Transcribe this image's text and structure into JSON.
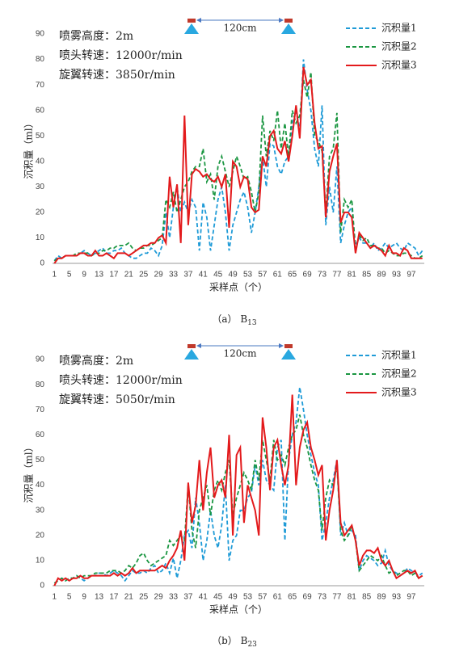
{
  "chart_data": [
    {
      "type": "line",
      "caption": "（a） B",
      "caption_sub": "13",
      "xlabel": "采样点（个）",
      "ylabel": "沉积量（ml）",
      "annotations": [
        "喷雾高度：2m",
        "喷头转速：12000r/min",
        "旋翼转速：3850r/min"
      ],
      "spacing_label": "120cm",
      "ylim": [
        0,
        90
      ],
      "yticks": [
        0,
        10,
        20,
        30,
        40,
        50,
        60,
        70,
        80,
        90
      ],
      "categories": [
        1,
        null,
        null,
        null,
        5,
        null,
        null,
        null,
        9,
        null,
        null,
        null,
        13,
        null,
        null,
        null,
        17,
        null,
        null,
        null,
        21,
        null,
        null,
        null,
        25,
        null,
        null,
        null,
        29,
        null,
        null,
        null,
        33,
        null,
        null,
        null,
        37,
        null,
        null,
        null,
        41,
        null,
        null,
        null,
        45,
        null,
        null,
        null,
        49,
        null,
        null,
        null,
        53,
        null,
        null,
        null,
        57,
        null,
        null,
        null,
        61,
        null,
        null,
        null,
        65,
        null,
        null,
        null,
        69,
        null,
        null,
        null,
        73,
        null,
        null,
        null,
        77,
        null,
        null,
        null,
        81,
        null,
        null,
        null,
        85,
        null,
        null,
        null,
        89,
        null,
        null,
        null,
        93,
        null,
        null,
        null,
        97,
        null,
        null,
        null
      ],
      "series": [
        {
          "name": "沉积量1",
          "color": "#1f9bd7",
          "linestyle": "dashed",
          "values": [
            1,
            3,
            2,
            3,
            3,
            3,
            3,
            4,
            5,
            4,
            3,
            4,
            5,
            6,
            4,
            4,
            5,
            5,
            6,
            4,
            3,
            2,
            2,
            3,
            4,
            4,
            6,
            5,
            3,
            7,
            20,
            10,
            22,
            30,
            20,
            24,
            20,
            25,
            22,
            5,
            24,
            18,
            5,
            15,
            25,
            30,
            20,
            5,
            15,
            20,
            25,
            28,
            22,
            12,
            20,
            30,
            42,
            30,
            47,
            46,
            38,
            35,
            40,
            42,
            55,
            60,
            52,
            80,
            68,
            60,
            45,
            38,
            62,
            15,
            30,
            20,
            38,
            8,
            15,
            20,
            22,
            7,
            10,
            8,
            8,
            6,
            8,
            5,
            6,
            8,
            6,
            7,
            8,
            6,
            5,
            8,
            7,
            6,
            3,
            5
          ]
        },
        {
          "name": "沉积量2",
          "color": "#1a9641",
          "linestyle": "dashed",
          "values": [
            1,
            2,
            2,
            3,
            3,
            3,
            4,
            4,
            4,
            4,
            3,
            4,
            4,
            5,
            5,
            6,
            6,
            7,
            7,
            7,
            8,
            6,
            5,
            6,
            6,
            7,
            7,
            8,
            9,
            10,
            25,
            22,
            28,
            20,
            25,
            30,
            32,
            36,
            38,
            38,
            45,
            32,
            35,
            25,
            38,
            42,
            36,
            30,
            36,
            42,
            38,
            33,
            34,
            28,
            20,
            28,
            58,
            42,
            52,
            48,
            60,
            45,
            55,
            42,
            60,
            55,
            58,
            72,
            65,
            75,
            50,
            48,
            44,
            20,
            42,
            45,
            59,
            12,
            25,
            22,
            25,
            5,
            11,
            9,
            10,
            7,
            7,
            6,
            6,
            4,
            5,
            4,
            3,
            3,
            4,
            4,
            3,
            2,
            2,
            3
          ]
        },
        {
          "name": "沉积量3",
          "color": "#e31a1c",
          "linestyle": "solid",
          "values": [
            0,
            2,
            2,
            3,
            3,
            3,
            3,
            4,
            4,
            3,
            3,
            5,
            3,
            3,
            4,
            3,
            2,
            4,
            4,
            4,
            3,
            4,
            5,
            6,
            7,
            7,
            8,
            8,
            10,
            11,
            8,
            34,
            22,
            31,
            8,
            58,
            15,
            35,
            37,
            36,
            34,
            35,
            33,
            32,
            34,
            30,
            35,
            14,
            40,
            38,
            30,
            34,
            33,
            22,
            20,
            21,
            42,
            38,
            50,
            52,
            45,
            43,
            48,
            40,
            50,
            62,
            49,
            77,
            70,
            72,
            55,
            45,
            46,
            18,
            36,
            42,
            47,
            16,
            20,
            20,
            18,
            4,
            12,
            10,
            8,
            6,
            7,
            6,
            5,
            3,
            7,
            4,
            4,
            3,
            6,
            5,
            2,
            2,
            2,
            2
          ]
        }
      ]
    },
    {
      "type": "line",
      "caption": "（b） B",
      "caption_sub": "23",
      "xlabel": "采样点（个）",
      "ylabel": "沉积量（ml）",
      "annotations": [
        "喷雾高度：2m",
        "喷头转速：12000r/min",
        "旋翼转速：5050r/min"
      ],
      "spacing_label": "120cm",
      "ylim": [
        0,
        90
      ],
      "yticks": [
        0,
        10,
        20,
        30,
        40,
        50,
        60,
        70,
        80,
        90
      ],
      "categories": [
        1,
        null,
        null,
        null,
        5,
        null,
        null,
        null,
        9,
        null,
        null,
        null,
        13,
        null,
        null,
        null,
        17,
        null,
        null,
        null,
        21,
        null,
        null,
        null,
        25,
        null,
        null,
        null,
        29,
        null,
        null,
        null,
        33,
        null,
        null,
        null,
        37,
        null,
        null,
        null,
        41,
        null,
        null,
        null,
        45,
        null,
        null,
        null,
        49,
        null,
        null,
        null,
        53,
        null,
        null,
        null,
        57,
        null,
        null,
        null,
        61,
        null,
        null,
        null,
        65,
        null,
        null,
        null,
        69,
        null,
        null,
        null,
        73,
        null,
        null,
        null,
        77,
        null,
        null,
        null,
        81,
        null,
        null,
        null,
        85,
        null,
        null,
        null,
        89,
        null,
        null,
        null,
        93,
        null,
        null,
        null,
        97,
        null,
        null,
        null
      ],
      "series": [
        {
          "name": "沉积量1",
          "color": "#1f9bd7",
          "linestyle": "dashed",
          "values": [
            1,
            2,
            3,
            2,
            3,
            3,
            4,
            3,
            2,
            3,
            4,
            4,
            5,
            5,
            4,
            5,
            6,
            5,
            4,
            2,
            4,
            6,
            5,
            5,
            6,
            5,
            7,
            8,
            5,
            6,
            9,
            5,
            11,
            3,
            10,
            20,
            22,
            15,
            35,
            25,
            10,
            18,
            30,
            20,
            15,
            24,
            40,
            10,
            18,
            20,
            30,
            30,
            35,
            37,
            48,
            40,
            50,
            42,
            40,
            38,
            55,
            58,
            18,
            50,
            60,
            65,
            79,
            70,
            60,
            52,
            45,
            40,
            18,
            25,
            35,
            42,
            50,
            20,
            25,
            20,
            22,
            20,
            6,
            10,
            12,
            11,
            10,
            8,
            9,
            14,
            8,
            6,
            5,
            4,
            5,
            7,
            6,
            5,
            4,
            5
          ]
        },
        {
          "name": "沉积量2",
          "color": "#1a9641",
          "linestyle": "dashed",
          "values": [
            1,
            2,
            3,
            2,
            3,
            3,
            4,
            3,
            4,
            4,
            4,
            5,
            5,
            5,
            5,
            6,
            6,
            6,
            5,
            6,
            8,
            7,
            9,
            12,
            13,
            10,
            8,
            9,
            10,
            11,
            12,
            18,
            16,
            18,
            20,
            18,
            40,
            22,
            15,
            30,
            35,
            40,
            28,
            38,
            42,
            38,
            45,
            50,
            28,
            35,
            40,
            45,
            42,
            38,
            50,
            42,
            58,
            50,
            42,
            58,
            50,
            52,
            48,
            55,
            60,
            62,
            68,
            60,
            55,
            48,
            42,
            38,
            22,
            35,
            42,
            40,
            48,
            22,
            18,
            20,
            24,
            18,
            6,
            8,
            10,
            12,
            11,
            10,
            12,
            8,
            5,
            6,
            4,
            5,
            6,
            6,
            4,
            5,
            3,
            4
          ]
        },
        {
          "name": "沉积量3",
          "color": "#e31a1c",
          "linestyle": "solid",
          "values": [
            0,
            3,
            2,
            3,
            2,
            3,
            3,
            4,
            3,
            3,
            4,
            4,
            4,
            4,
            4,
            4,
            5,
            4,
            5,
            4,
            5,
            7,
            5,
            6,
            6,
            6,
            6,
            6,
            7,
            8,
            7,
            10,
            12,
            15,
            22,
            10,
            41,
            25,
            32,
            50,
            30,
            45,
            55,
            35,
            40,
            42,
            35,
            60,
            20,
            52,
            55,
            25,
            40,
            35,
            30,
            20,
            67,
            55,
            38,
            55,
            58,
            48,
            40,
            48,
            76,
            40,
            55,
            62,
            65,
            55,
            50,
            44,
            48,
            18,
            30,
            38,
            50,
            25,
            20,
            22,
            24,
            18,
            8,
            12,
            14,
            14,
            13,
            15,
            10,
            8,
            10,
            6,
            3,
            4,
            5,
            6,
            5,
            6,
            3,
            4
          ]
        }
      ]
    }
  ]
}
